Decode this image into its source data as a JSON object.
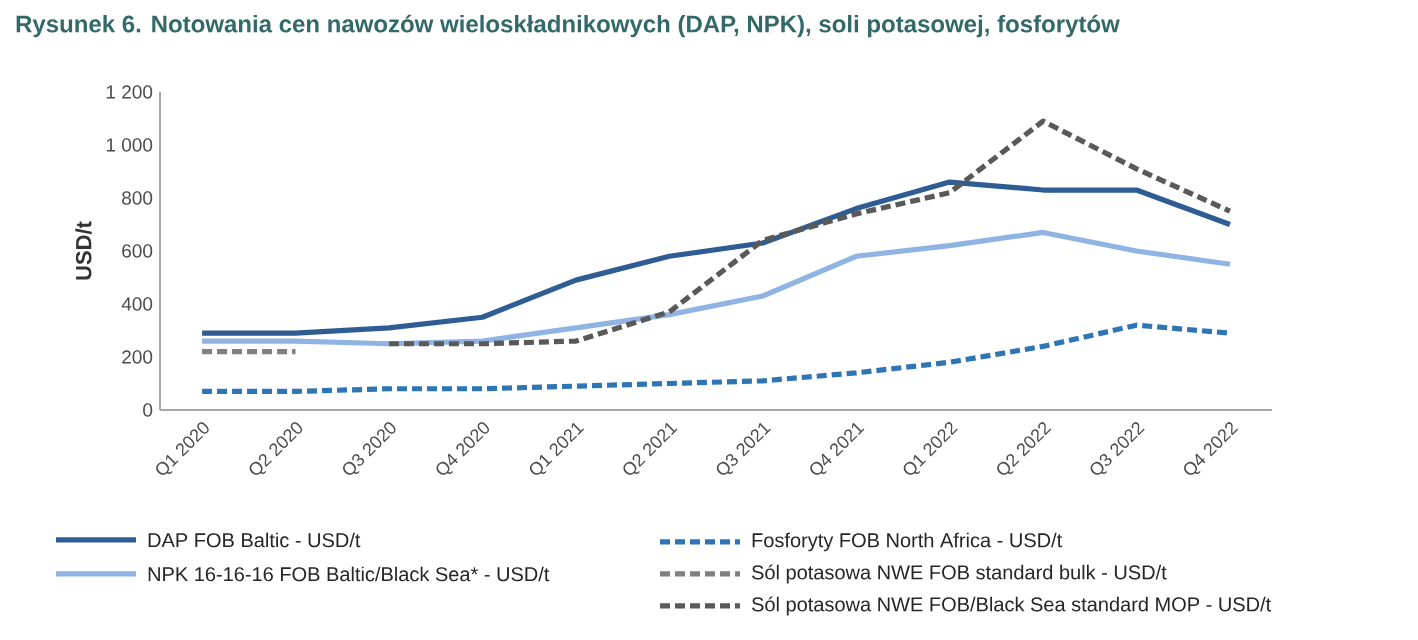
{
  "chart_data": {
    "type": "line",
    "title": "Rysunek 6. Notowania cen nawozów wieloskładnikowych (DAP, NPK), soli potasowej, fosforytów",
    "ylabel": "USD/t",
    "categories": [
      "Q1 2020",
      "Q2 2020",
      "Q3 2020",
      "Q4 2020",
      "Q1 2021",
      "Q2 2021",
      "Q3 2021",
      "Q4 2021",
      "Q1 2022",
      "Q2 2022",
      "Q3 2022",
      "Q4 2022"
    ],
    "series": [
      {
        "name": "DAP FOB Baltic - USD/t",
        "color": "#2f5d93",
        "line_style": "solid",
        "values": [
          290,
          290,
          310,
          350,
          490,
          580,
          630,
          760,
          860,
          830,
          830,
          700
        ]
      },
      {
        "name": "NPK 16-16-16 FOB Baltic/Black Sea* - USD/t",
        "color": "#8fb4e3",
        "line_style": "solid",
        "values": [
          260,
          260,
          250,
          260,
          310,
          360,
          430,
          580,
          620,
          670,
          600,
          550
        ]
      },
      {
        "name": "Fosforyty FOB North Africa - USD/t",
        "color": "#2e75b6",
        "line_style": "dashed",
        "values": [
          70,
          70,
          80,
          80,
          90,
          100,
          110,
          140,
          180,
          240,
          320,
          290
        ]
      },
      {
        "name": "Sól potasowa NWE FOB standard bulk - USD/t",
        "color": "#808080",
        "line_style": "dashed",
        "values": [
          220,
          220,
          null,
          null,
          null,
          null,
          null,
          null,
          null,
          null,
          null,
          null
        ]
      },
      {
        "name": "Sól potasowa NWE FOB/Black Sea standard MOP - USD/t",
        "color": "#595959",
        "line_style": "dashed",
        "values": [
          null,
          null,
          250,
          250,
          260,
          370,
          640,
          740,
          820,
          1090,
          910,
          750
        ]
      }
    ],
    "ylim": [
      0,
      1200
    ],
    "yticks": [
      0,
      200,
      400,
      600,
      800,
      {
        "value": 1000,
        "label": "1 000"
      },
      {
        "value": 1200,
        "label": "1 200"
      }
    ],
    "grid": false,
    "legend": "bottom"
  }
}
